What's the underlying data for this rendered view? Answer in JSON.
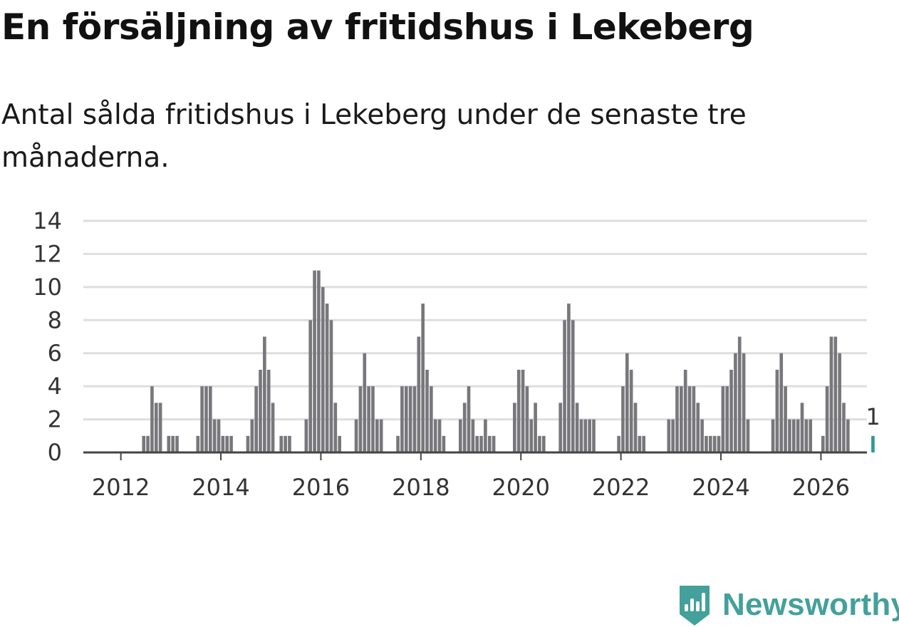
{
  "title": "En försäljning av fritidshus i Lekeberg",
  "subtitle": "Antal sålda fritidshus i Lekeberg under de senaste tre månaderna.",
  "brand": {
    "name": "Newsworthy",
    "icon": "bar-chart-icon",
    "color": "#44a09b"
  },
  "chart_data": {
    "type": "bar",
    "title": "En försäljning av fritidshus i Lekeberg",
    "subtitle": "Antal sålda fritidshus i Lekeberg under de senaste tre månaderna.",
    "xlabel": "",
    "ylabel": "",
    "ylim": [
      0,
      14
    ],
    "yticks": [
      "0",
      "2",
      "4",
      "6",
      "8",
      "10",
      "12",
      "14"
    ],
    "xticks": [
      "2012",
      "2014",
      "2016",
      "2018",
      "2020",
      "2022",
      "2024",
      "2026"
    ],
    "x_range": [
      2011.25,
      2026.92
    ],
    "grid": true,
    "bar_color": "#78777b",
    "highlight_color": "#2a9d92",
    "highlight_label": "1",
    "series": [
      {
        "name": "Antal sålda fritidshus",
        "start": "2011-04",
        "values": [
          0,
          0,
          0,
          0,
          0,
          0,
          0,
          0,
          0,
          0,
          0,
          0,
          0,
          0,
          1,
          1,
          4,
          3,
          3,
          0,
          1,
          1,
          1,
          0,
          0,
          0,
          0,
          1,
          4,
          4,
          4,
          2,
          2,
          1,
          1,
          1,
          0,
          0,
          0,
          1,
          2,
          4,
          5,
          7,
          5,
          3,
          0,
          1,
          1,
          1,
          0,
          0,
          0,
          2,
          8,
          11,
          11,
          10,
          9,
          8,
          3,
          1,
          0,
          0,
          0,
          2,
          4,
          6,
          4,
          4,
          2,
          2,
          0,
          0,
          0,
          1,
          4,
          4,
          4,
          4,
          7,
          9,
          5,
          4,
          2,
          2,
          1,
          0,
          0,
          0,
          2,
          3,
          4,
          2,
          1,
          1,
          2,
          1,
          1,
          0,
          0,
          0,
          0,
          3,
          5,
          5,
          4,
          2,
          3,
          1,
          1,
          0,
          0,
          0,
          3,
          8,
          9,
          8,
          3,
          2,
          2,
          2,
          2,
          0,
          0,
          0,
          0,
          0,
          1,
          4,
          6,
          5,
          3,
          1,
          1,
          0,
          0,
          0,
          0,
          0,
          2,
          2,
          4,
          4,
          5,
          4,
          4,
          3,
          2,
          1,
          1,
          1,
          1,
          4,
          4,
          5,
          6,
          7,
          6,
          2,
          0,
          0,
          0,
          0,
          0,
          2,
          5,
          6,
          4,
          2,
          2,
          2,
          3,
          2,
          2,
          0,
          0,
          1,
          4,
          7,
          7,
          6,
          3,
          2,
          0,
          0,
          0,
          0,
          0,
          1
        ]
      }
    ]
  }
}
